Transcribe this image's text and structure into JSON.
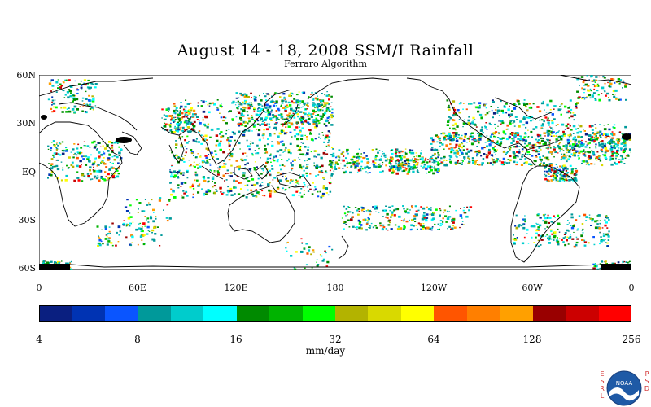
{
  "title": "August 14 - 18, 2008 SSM/I Rainfall",
  "subtitle": "Ferraro Algorithm",
  "lat_labels": [
    "60N",
    "30N",
    "EQ",
    "30S",
    "60S"
  ],
  "lon_labels": [
    "0",
    "60E",
    "120E",
    "180",
    "120W",
    "60W",
    "0"
  ],
  "colorbar": {
    "tick_labels": [
      "4",
      "8",
      "16",
      "32",
      "64",
      "128",
      "256"
    ],
    "units": "mm/day",
    "colors": [
      "#0a1f80",
      "#0033b3",
      "#0a55ff",
      "#00999a",
      "#00cccc",
      "#00ffff",
      "#008a00",
      "#00b300",
      "#00ff00",
      "#b3b300",
      "#d9d900",
      "#ffff00",
      "#ff5500",
      "#ff7f00",
      "#ffa000",
      "#990000",
      "#cc0000",
      "#ff0000"
    ]
  },
  "logo": {
    "left_letters": [
      "E",
      "S",
      "R",
      "L"
    ],
    "right_letters": [
      "P",
      "S",
      "D"
    ],
    "emblem_text": "NOAA"
  }
}
